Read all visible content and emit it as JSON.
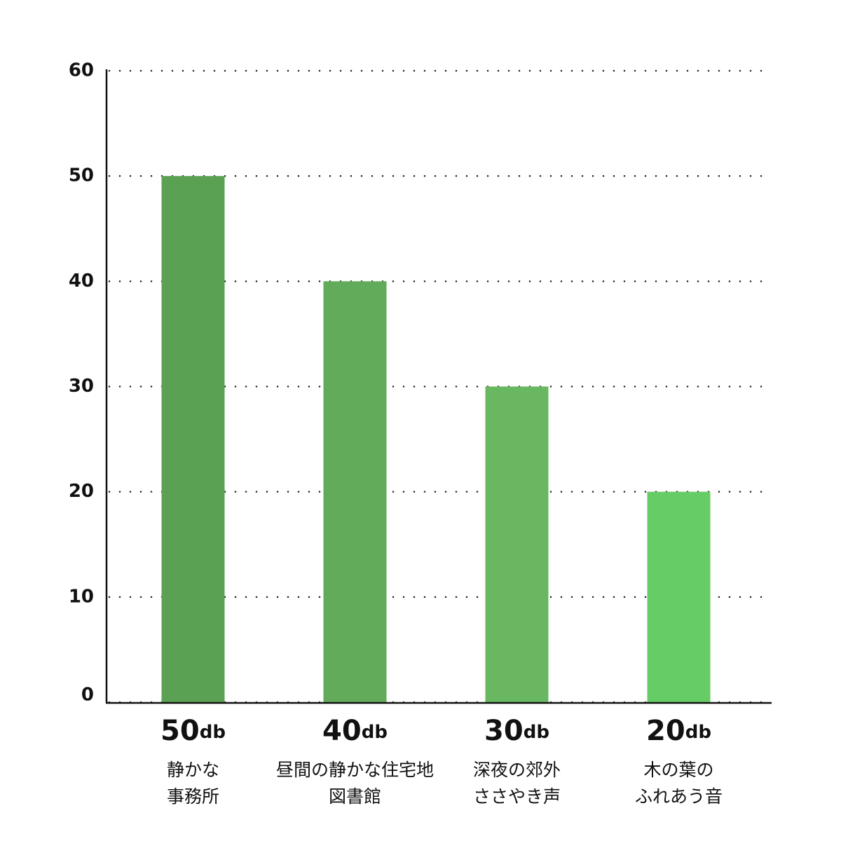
{
  "chart_data": {
    "type": "bar",
    "categories": [
      [
        "静かな",
        "事務所"
      ],
      [
        "昼間の静かな住宅地",
        "図書館"
      ],
      [
        "深夜の郊外",
        "ささやき声"
      ],
      [
        "木の葉の",
        "ふれあう音"
      ]
    ],
    "values": [
      50,
      40,
      30,
      20
    ],
    "value_labels": [
      "50db",
      "40db",
      "30db",
      "20db"
    ],
    "colors": [
      "#5ba154",
      "#62ab5a",
      "#69b861",
      "#66cc66"
    ],
    "ylim": [
      0,
      60
    ],
    "yticks": [
      0,
      10,
      20,
      30,
      40,
      50,
      60
    ],
    "grid": true
  }
}
